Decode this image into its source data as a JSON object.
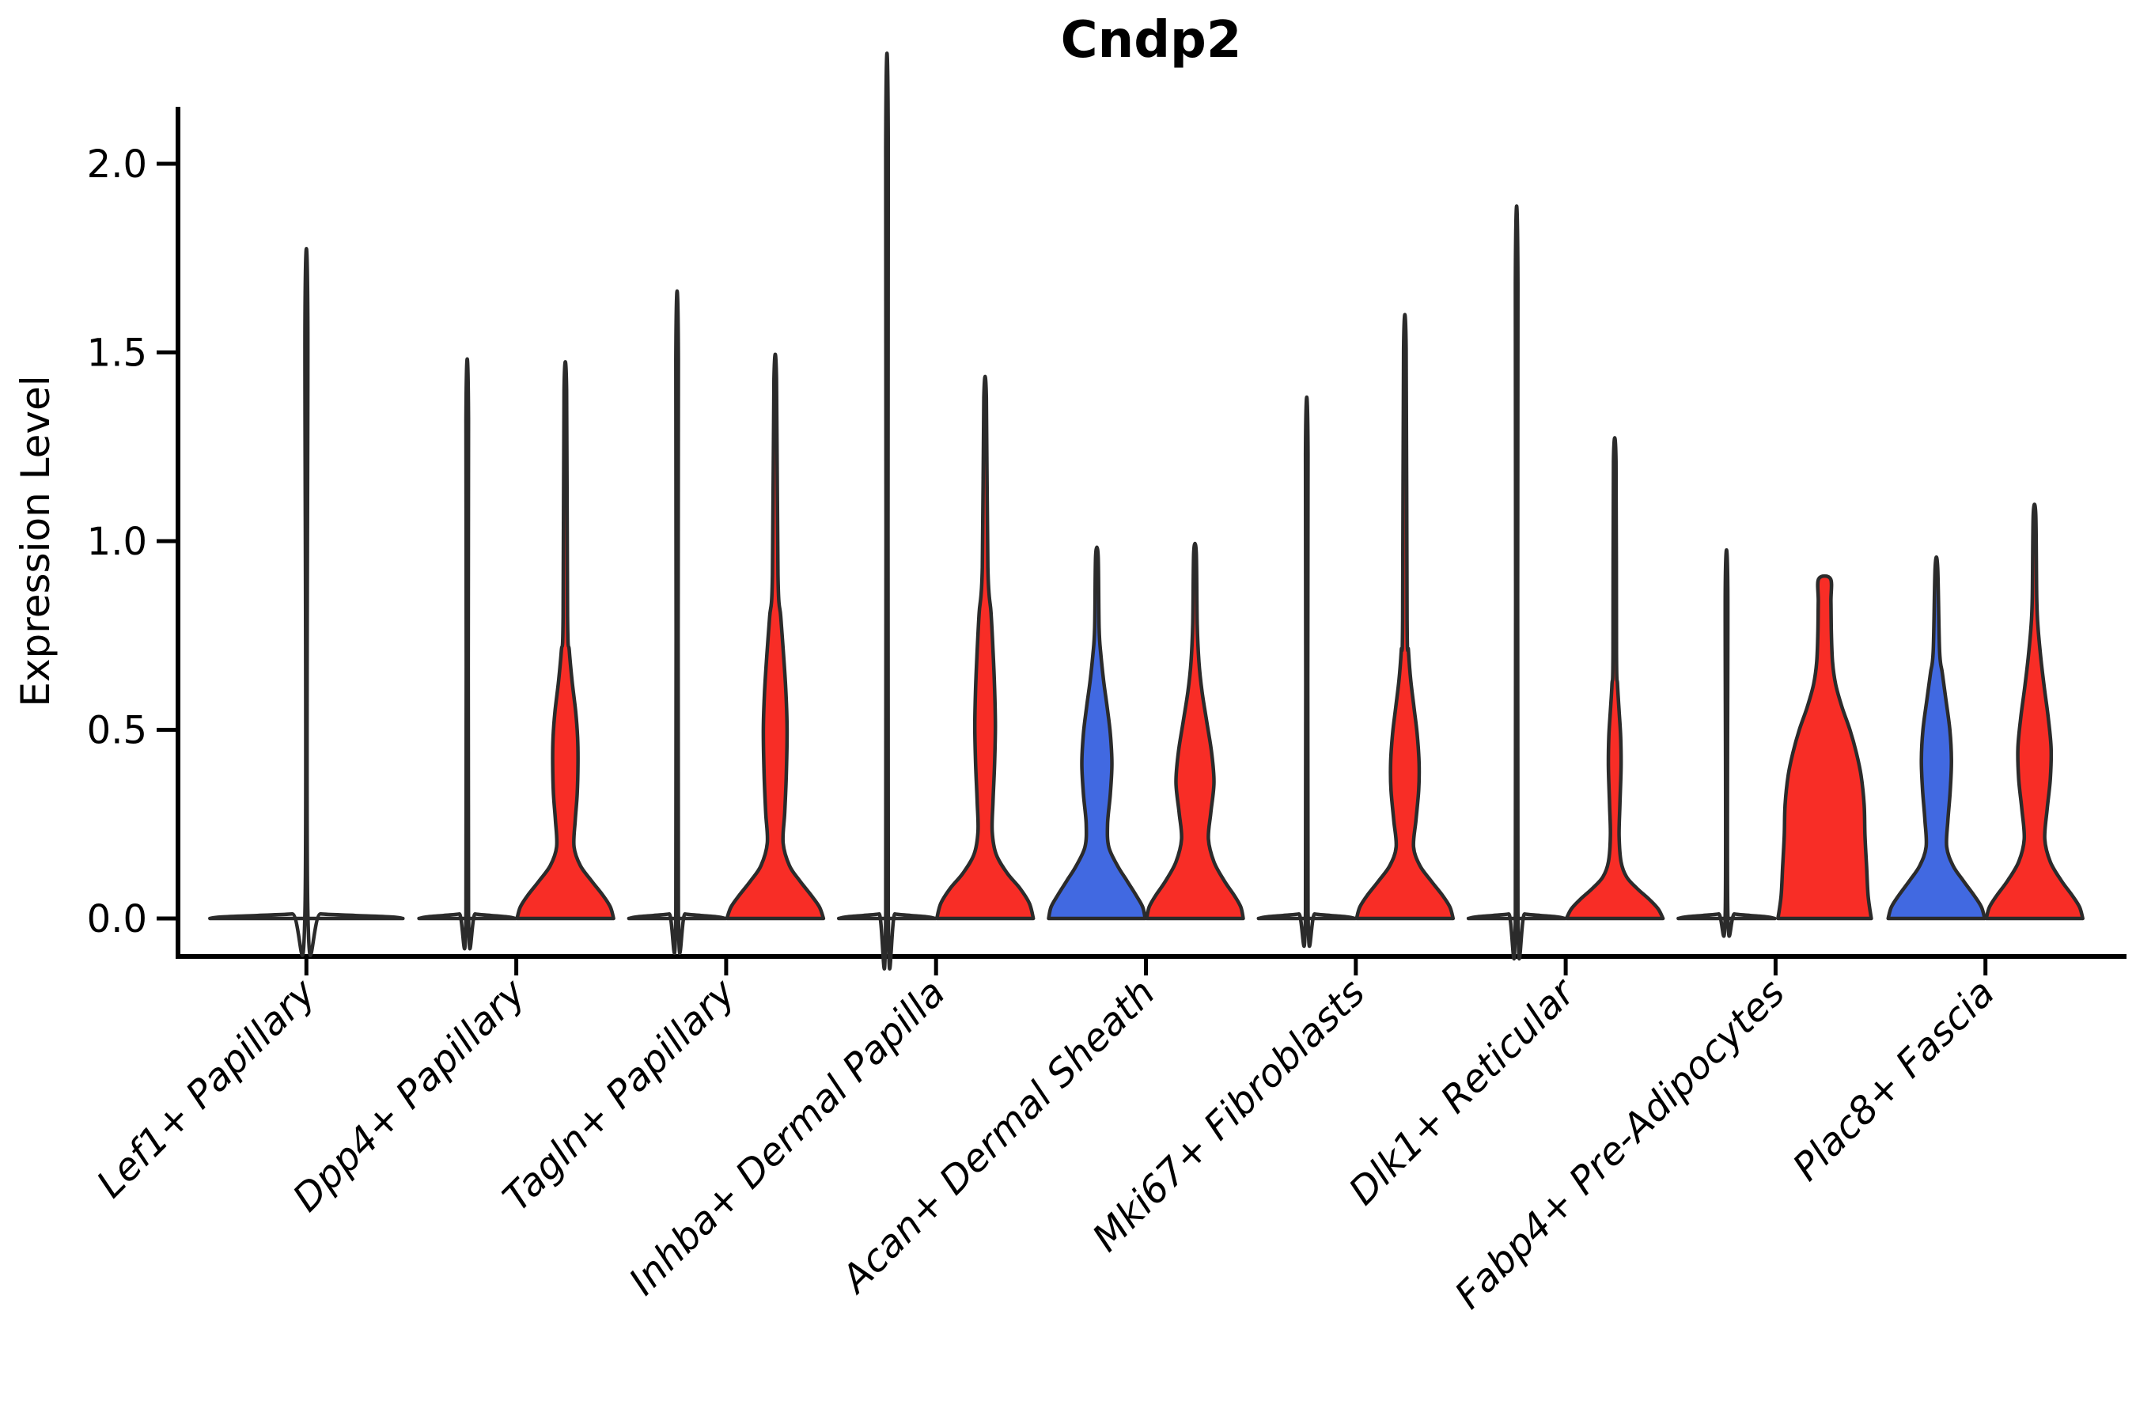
{
  "title": "Cndp2",
  "axes": {
    "ylabel": "Expression Level",
    "ytick_labels": [
      "0.0",
      "0.5",
      "1.0",
      "1.5",
      "2.0"
    ],
    "ytick_values": [
      0.0,
      0.5,
      1.0,
      1.5,
      2.0
    ]
  },
  "colors": {
    "red": "#F82D26",
    "blue": "#4169E1",
    "outline": "#2B2B2B",
    "axis": "#000000",
    "background": "#FFFFFF"
  },
  "chart_data": {
    "type": "violin",
    "title": "Cndp2",
    "xlabel": "",
    "ylabel": "Expression Level",
    "ylim": [
      0,
      2.1
    ],
    "yticks": [
      0.0,
      0.5,
      1.0,
      1.5,
      2.0
    ],
    "grid": false,
    "legend": "none",
    "x_axis_style": {
      "label_rotation_deg": 45,
      "label_style": "italic"
    },
    "categories": [
      "Lef1+ Papillary",
      "Dpp4+ Papillary",
      "Tagln+ Papillary",
      "Inhba+ Dermal Papilla",
      "Acan+ Dermal Sheath",
      "Mki67+ Fibroblasts",
      "Dlk1+ Reticular",
      "Fabp4+ Pre-Adipocytes",
      "Plac8+ Fascia"
    ],
    "profile_note": "profile = [expression_value, half_width_px] pairs describing the kernel-density outline of each violin; body 'flat' = nearly all observations at 0 with a thin whisker to spike_max",
    "violins": [
      {
        "category": "Lef1+ Papillary",
        "position": "center",
        "color": null,
        "body": "flat",
        "spike_max": 1.58,
        "profile": [
          [
            0,
            122
          ],
          [
            0.004,
            108
          ],
          [
            0.008,
            62
          ],
          [
            0.012,
            18
          ],
          [
            0.02,
            1.8
          ],
          [
            1.58,
            1.8
          ]
        ]
      },
      {
        "category": "Dpp4+ Papillary",
        "position": "left",
        "color": null,
        "body": "flat",
        "spike_max": 1.32,
        "profile": [
          [
            0,
            61
          ],
          [
            0.004,
            52
          ],
          [
            0.008,
            30
          ],
          [
            0.012,
            10
          ],
          [
            0.018,
            1.6
          ],
          [
            1.32,
            1.6
          ]
        ]
      },
      {
        "category": "Dpp4+ Papillary",
        "position": "right",
        "color": "red",
        "body": "bulge",
        "bulge_peak": 0.45,
        "spike_max": 1.4,
        "profile": [
          [
            0,
            61
          ],
          [
            0.03,
            57
          ],
          [
            0.06,
            48
          ],
          [
            0.1,
            33
          ],
          [
            0.14,
            19
          ],
          [
            0.19,
            11
          ],
          [
            0.26,
            12.5
          ],
          [
            0.33,
            15
          ],
          [
            0.41,
            16
          ],
          [
            0.48,
            15.5
          ],
          [
            0.55,
            13
          ],
          [
            0.63,
            8.5
          ],
          [
            0.71,
            5
          ],
          [
            0.8,
            2.8
          ],
          [
            1.4,
            1.6
          ]
        ]
      },
      {
        "category": "Tagln+ Papillary",
        "position": "left",
        "color": null,
        "body": "flat",
        "spike_max": 1.48,
        "profile": [
          [
            0,
            61
          ],
          [
            0.004,
            52
          ],
          [
            0.008,
            30
          ],
          [
            0.012,
            10
          ],
          [
            0.018,
            1.6
          ],
          [
            1.48,
            1.6
          ]
        ]
      },
      {
        "category": "Tagln+ Papillary",
        "position": "right",
        "color": "red",
        "body": "bulge",
        "bulge_peak": 0.5,
        "spike_max": 1.43,
        "profile": [
          [
            0,
            61
          ],
          [
            0.03,
            56
          ],
          [
            0.06,
            46
          ],
          [
            0.1,
            31
          ],
          [
            0.14,
            18
          ],
          [
            0.2,
            10
          ],
          [
            0.28,
            12
          ],
          [
            0.38,
            14
          ],
          [
            0.5,
            15
          ],
          [
            0.6,
            13.5
          ],
          [
            0.7,
            10.5
          ],
          [
            0.8,
            7
          ],
          [
            0.91,
            3.5
          ],
          [
            1.43,
            1.6
          ]
        ]
      },
      {
        "category": "Inhba+ Dermal Papilla",
        "position": "left",
        "color": null,
        "body": "flat",
        "spike_max": 2.04,
        "profile": [
          [
            0,
            61
          ],
          [
            0.004,
            52
          ],
          [
            0.008,
            30
          ],
          [
            0.012,
            10
          ],
          [
            0.018,
            1.6
          ],
          [
            2.04,
            1.6
          ]
        ]
      },
      {
        "category": "Inhba+ Dermal Papilla",
        "position": "right",
        "color": "red",
        "body": "bulge",
        "bulge_peak": 0.51,
        "spike_max": 1.38,
        "profile": [
          [
            0,
            61
          ],
          [
            0.04,
            56
          ],
          [
            0.08,
            44
          ],
          [
            0.12,
            28
          ],
          [
            0.17,
            14
          ],
          [
            0.23,
            9
          ],
          [
            0.31,
            10
          ],
          [
            0.41,
            12
          ],
          [
            0.51,
            13
          ],
          [
            0.61,
            12
          ],
          [
            0.71,
            10
          ],
          [
            0.81,
            7.5
          ],
          [
            0.93,
            3.5
          ],
          [
            1.38,
            1.6
          ]
        ]
      },
      {
        "category": "Acan+ Dermal Sheath",
        "position": "left",
        "color": "blue",
        "body": "bulge",
        "bulge_peak": 0.41,
        "spike_max": 0.96,
        "profile": [
          [
            0,
            61
          ],
          [
            0.03,
            58
          ],
          [
            0.06,
            50
          ],
          [
            0.1,
            38
          ],
          [
            0.14,
            26
          ],
          [
            0.19,
            15
          ],
          [
            0.25,
            13.5
          ],
          [
            0.33,
            17
          ],
          [
            0.41,
            19
          ],
          [
            0.49,
            17
          ],
          [
            0.56,
            13
          ],
          [
            0.63,
            8.5
          ],
          [
            0.7,
            5
          ],
          [
            0.77,
            2.8
          ],
          [
            0.96,
            1.6
          ]
        ]
      },
      {
        "category": "Acan+ Dermal Sheath",
        "position": "right",
        "color": "red",
        "body": "bulge",
        "bulge_peak": 0.36,
        "spike_max": 0.97,
        "profile": [
          [
            0,
            61
          ],
          [
            0.03,
            58
          ],
          [
            0.06,
            50
          ],
          [
            0.1,
            37
          ],
          [
            0.15,
            24
          ],
          [
            0.21,
            17
          ],
          [
            0.28,
            20
          ],
          [
            0.36,
            24
          ],
          [
            0.44,
            21
          ],
          [
            0.52,
            15
          ],
          [
            0.6,
            9
          ],
          [
            0.68,
            5
          ],
          [
            0.78,
            2.8
          ],
          [
            0.97,
            1.6
          ]
        ]
      },
      {
        "category": "Mki67+ Fibroblasts",
        "position": "left",
        "color": null,
        "body": "flat",
        "spike_max": 1.23,
        "profile": [
          [
            0,
            61
          ],
          [
            0.004,
            52
          ],
          [
            0.008,
            30
          ],
          [
            0.012,
            10
          ],
          [
            0.018,
            1.6
          ],
          [
            1.23,
            1.6
          ]
        ]
      },
      {
        "category": "Mki67+ Fibroblasts",
        "position": "right",
        "color": "red",
        "body": "bulge",
        "bulge_peak": 0.41,
        "spike_max": 1.51,
        "profile": [
          [
            0,
            61
          ],
          [
            0.03,
            57
          ],
          [
            0.06,
            48
          ],
          [
            0.1,
            33
          ],
          [
            0.14,
            19
          ],
          [
            0.19,
            11
          ],
          [
            0.26,
            14
          ],
          [
            0.34,
            17.5
          ],
          [
            0.41,
            18
          ],
          [
            0.49,
            15.5
          ],
          [
            0.56,
            11.5
          ],
          [
            0.63,
            7.5
          ],
          [
            0.71,
            4.5
          ],
          [
            0.79,
            2.8
          ],
          [
            1.51,
            1.6
          ]
        ]
      },
      {
        "category": "Dlk1+ Reticular",
        "position": "left",
        "color": null,
        "body": "flat",
        "spike_max": 1.68,
        "profile": [
          [
            0,
            61
          ],
          [
            0.004,
            52
          ],
          [
            0.008,
            30
          ],
          [
            0.012,
            10
          ],
          [
            0.018,
            1.6
          ],
          [
            1.68,
            1.6
          ]
        ]
      },
      {
        "category": "Dlk1+ Reticular",
        "position": "right",
        "color": "red",
        "body": "bulge",
        "bulge_peak": 0.4,
        "spike_max": 1.21,
        "profile": [
          [
            0,
            61
          ],
          [
            0.025,
            55
          ],
          [
            0.05,
            44
          ],
          [
            0.08,
            28
          ],
          [
            0.11,
            15
          ],
          [
            0.15,
            8
          ],
          [
            0.22,
            5.5
          ],
          [
            0.3,
            6.5
          ],
          [
            0.4,
            8
          ],
          [
            0.48,
            7.5
          ],
          [
            0.55,
            5.5
          ],
          [
            0.62,
            3.5
          ],
          [
            0.7,
            2.2
          ],
          [
            1.21,
            1.6
          ]
        ]
      },
      {
        "category": "Fabp4+ Pre-Adipocytes",
        "position": "left",
        "color": null,
        "body": "flat",
        "spike_max": 0.87,
        "profile": [
          [
            0,
            61
          ],
          [
            0.004,
            52
          ],
          [
            0.008,
            30
          ],
          [
            0.012,
            10
          ],
          [
            0.018,
            1.6
          ],
          [
            0.87,
            1.6
          ]
        ]
      },
      {
        "category": "Fabp4+ Pre-Adipocytes",
        "position": "right",
        "color": "red",
        "body": "wide-truncated",
        "bulge_peak": 0.3,
        "spike_max": 0.9,
        "profile": [
          [
            0,
            59
          ],
          [
            0.06,
            55
          ],
          [
            0.14,
            53
          ],
          [
            0.22,
            51
          ],
          [
            0.3,
            50
          ],
          [
            0.38,
            46
          ],
          [
            0.44,
            40
          ],
          [
            0.5,
            32
          ],
          [
            0.56,
            22
          ],
          [
            0.62,
            14
          ],
          [
            0.68,
            10
          ],
          [
            0.76,
            8.5
          ],
          [
            0.84,
            8
          ],
          [
            0.9,
            7.5
          ]
        ]
      },
      {
        "category": "Plac8+ Fascia",
        "position": "left",
        "color": "blue",
        "body": "bulge",
        "bulge_peak": 0.42,
        "spike_max": 0.93,
        "profile": [
          [
            0,
            61
          ],
          [
            0.03,
            57
          ],
          [
            0.06,
            48
          ],
          [
            0.1,
            34
          ],
          [
            0.14,
            21
          ],
          [
            0.19,
            13
          ],
          [
            0.26,
            14.5
          ],
          [
            0.34,
            17.5
          ],
          [
            0.42,
            19
          ],
          [
            0.5,
            17
          ],
          [
            0.58,
            12
          ],
          [
            0.65,
            7.5
          ],
          [
            0.71,
            4
          ],
          [
            0.93,
            1.6
          ]
        ]
      },
      {
        "category": "Plac8+ Fascia",
        "position": "right",
        "color": "red",
        "body": "bulge",
        "bulge_peak": 0.45,
        "spike_max": 1.07,
        "profile": [
          [
            0,
            61
          ],
          [
            0.03,
            57
          ],
          [
            0.06,
            48
          ],
          [
            0.1,
            34
          ],
          [
            0.15,
            20
          ],
          [
            0.21,
            13
          ],
          [
            0.29,
            16
          ],
          [
            0.37,
            20
          ],
          [
            0.45,
            21
          ],
          [
            0.53,
            17.5
          ],
          [
            0.61,
            12.5
          ],
          [
            0.69,
            8
          ],
          [
            0.77,
            4.5
          ],
          [
            0.85,
            2.8
          ],
          [
            1.07,
            1.6
          ]
        ]
      }
    ]
  }
}
